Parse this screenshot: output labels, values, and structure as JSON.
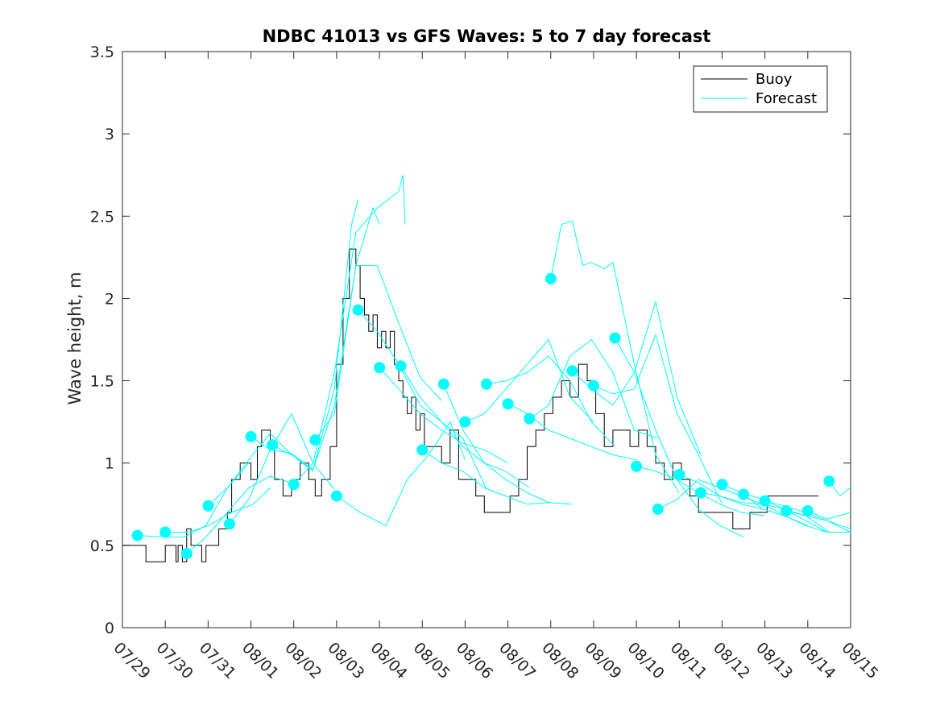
{
  "chart_data": {
    "type": "line",
    "title": "NDBC 41013 vs GFS Waves: 5 to 7 day forecast",
    "xlabel": "",
    "ylabel": "Wave height, m",
    "xlim": [
      -0.95,
      16.05
    ],
    "ylim": [
      0,
      3.5
    ],
    "x_tick_values": [
      -0.95,
      0.05,
      1.05,
      2.05,
      3.05,
      4.05,
      5.05,
      6.05,
      7.05,
      8.05,
      9.05,
      10.05,
      11.05,
      12.05,
      13.05,
      14.05,
      15.05,
      16.05
    ],
    "x_tick_labels": [
      "07/29",
      "07/30",
      "07/31",
      "08/01",
      "08/02",
      "08/03",
      "08/04",
      "08/05",
      "08/06",
      "08/07",
      "08/08",
      "08/09",
      "08/10",
      "08/11",
      "08/12",
      "08/13",
      "08/14",
      "08/15"
    ],
    "y_ticks": [
      0,
      0.5,
      1,
      1.5,
      2,
      2.5,
      3,
      3.5
    ],
    "legend": {
      "location": "top-right",
      "entries": [
        {
          "label": "Buoy",
          "color": "#000000"
        },
        {
          "label": "Forecast",
          "color": "#00FFFF"
        }
      ]
    },
    "colors": {
      "buoy": "#000000",
      "forecast": "#00FFFF",
      "marker": "#00FFFF"
    },
    "buoy": {
      "name": "Buoy",
      "x": [
        -0.95,
        -0.6,
        -0.4,
        -0.35,
        0.0,
        0.05,
        0.3,
        0.35,
        0.45,
        0.55,
        0.65,
        0.7,
        0.9,
        1.0,
        1.2,
        1.3,
        1.5,
        1.6,
        1.8,
        1.9,
        2.05,
        2.2,
        2.3,
        2.5,
        2.6,
        2.8,
        3.0,
        3.2,
        3.4,
        3.55,
        3.7,
        3.9,
        4.05,
        4.2,
        4.35,
        4.5,
        4.6,
        4.7,
        4.8,
        4.9,
        5.0,
        5.1,
        5.2,
        5.3,
        5.4,
        5.5,
        5.6,
        5.7,
        5.8,
        5.9,
        6.0,
        6.1,
        6.3,
        6.5,
        6.7,
        6.9,
        7.1,
        7.3,
        7.5,
        7.7,
        7.9,
        8.1,
        8.3,
        8.5,
        8.7,
        8.9,
        9.1,
        9.3,
        9.5,
        9.7,
        9.9,
        10.1,
        10.3,
        10.5,
        10.7,
        10.9,
        11.1,
        11.3,
        11.5,
        11.7,
        11.9,
        12.1,
        12.3,
        12.5,
        12.7,
        12.9,
        13.1,
        13.3,
        13.5,
        13.7,
        13.9,
        14.1,
        14.3,
        14.5,
        14.7,
        14.9,
        15.1,
        15.3
      ],
      "y": [
        0.5,
        0.5,
        0.4,
        0.4,
        0.4,
        0.5,
        0.4,
        0.5,
        0.4,
        0.6,
        0.5,
        0.5,
        0.4,
        0.5,
        0.5,
        0.6,
        0.7,
        0.9,
        1.0,
        1.0,
        0.9,
        1.1,
        1.2,
        1.1,
        0.9,
        0.8,
        0.9,
        1.0,
        0.9,
        0.8,
        0.9,
        1.1,
        1.6,
        2.0,
        2.3,
        2.2,
        2.0,
        1.9,
        1.8,
        1.9,
        1.7,
        1.8,
        1.7,
        1.8,
        1.6,
        1.5,
        1.4,
        1.3,
        1.4,
        1.2,
        1.3,
        1.1,
        1.1,
        1.0,
        1.2,
        0.9,
        0.9,
        0.8,
        0.7,
        0.7,
        0.7,
        0.8,
        0.9,
        1.1,
        1.2,
        1.3,
        1.4,
        1.5,
        1.4,
        1.6,
        1.5,
        1.3,
        1.1,
        1.2,
        1.2,
        1.1,
        1.2,
        1.1,
        1.0,
        0.9,
        1.0,
        0.9,
        0.8,
        0.7,
        0.7,
        0.7,
        0.7,
        0.6,
        0.6,
        0.7,
        0.7,
        0.8,
        0.8,
        0.8,
        0.8,
        0.8,
        0.8,
        0.8
      ]
    },
    "forecast_series": [
      {
        "x": [
          -0.6,
          0.1,
          0.5,
          1.0,
          1.5,
          2.0
        ],
        "y": [
          0.56,
          0.55,
          0.55,
          0.62,
          0.85,
          1.0
        ]
      },
      {
        "x": [
          0.05,
          0.6,
          1.05,
          1.6,
          2.1,
          2.5
        ],
        "y": [
          0.58,
          0.58,
          0.62,
          0.7,
          0.75,
          0.85
        ]
      },
      {
        "x": [
          0.55,
          1.0,
          1.5,
          2.0,
          2.5,
          3.0
        ],
        "y": [
          0.45,
          0.55,
          0.7,
          0.85,
          0.92,
          0.88
        ]
      },
      {
        "x": [
          1.05,
          1.5,
          2.0,
          2.5,
          3.0,
          3.5
        ],
        "y": [
          0.74,
          0.85,
          1.02,
          1.18,
          1.05,
          0.95
        ]
      },
      {
        "x": [
          1.55,
          2.0,
          2.5,
          3.0,
          3.5,
          4.0
        ],
        "y": [
          0.63,
          0.78,
          1.08,
          1.3,
          1.0,
          0.84
        ]
      },
      {
        "x": [
          2.05,
          2.5,
          3.0,
          3.5,
          4.0,
          4.4,
          4.55
        ],
        "y": [
          1.16,
          1.08,
          1.06,
          0.96,
          1.45,
          2.45,
          2.6
        ]
      },
      {
        "x": [
          2.55,
          3.0,
          3.5,
          4.0,
          4.5,
          4.9,
          5.05
        ],
        "y": [
          1.11,
          1.05,
          0.96,
          1.35,
          2.2,
          2.55,
          2.45
        ]
      },
      {
        "x": [
          3.05,
          3.5,
          4.0,
          4.5,
          5.0,
          5.5,
          5.6,
          5.65
        ],
        "y": [
          0.87,
          1.0,
          1.55,
          2.4,
          2.55,
          2.65,
          2.75,
          2.45
        ]
      },
      {
        "x": [
          3.55,
          4.0,
          4.5,
          5.0,
          5.5,
          6.0,
          6.5
        ],
        "y": [
          1.14,
          1.3,
          2.2,
          2.2,
          1.85,
          1.52,
          1.38
        ]
      },
      {
        "x": [
          4.05,
          4.6,
          5.2,
          5.7,
          6.2,
          6.7,
          7.05
        ],
        "y": [
          0.8,
          0.7,
          0.62,
          0.9,
          1.05,
          1.25,
          1.02
        ]
      },
      {
        "x": [
          4.55,
          5.0,
          5.5,
          6.0,
          6.5,
          7.0,
          7.55
        ],
        "y": [
          1.93,
          1.8,
          1.6,
          1.35,
          1.25,
          1.15,
          0.84
        ]
      },
      {
        "x": [
          5.05,
          5.5,
          6.0,
          6.5,
          7.0,
          7.5,
          8.05
        ],
        "y": [
          1.58,
          1.45,
          1.3,
          1.2,
          1.12,
          1.08,
          1.0
        ]
      },
      {
        "x": [
          5.55,
          6.0,
          6.5,
          7.0,
          7.5,
          8.0,
          8.55
        ],
        "y": [
          1.59,
          1.4,
          1.25,
          1.1,
          1.0,
          0.95,
          0.85
        ]
      },
      {
        "x": [
          6.05,
          6.5,
          7.0,
          7.5,
          8.0,
          8.5,
          9.05
        ],
        "y": [
          1.08,
          1.0,
          0.95,
          0.85,
          0.8,
          0.75,
          0.76
        ]
      },
      {
        "x": [
          6.55,
          7.0,
          7.5,
          8.0,
          8.5,
          9.0,
          9.55
        ],
        "y": [
          1.48,
          1.2,
          1.0,
          0.9,
          0.82,
          0.76,
          0.75
        ]
      },
      {
        "x": [
          7.05,
          7.5,
          8.0,
          8.5,
          9.0,
          9.5,
          10.05
        ],
        "y": [
          1.25,
          1.3,
          1.45,
          1.6,
          1.75,
          1.4,
          1.25
        ]
      },
      {
        "x": [
          7.55,
          8.0,
          8.5,
          9.0,
          9.5,
          10.0,
          10.55
        ],
        "y": [
          1.48,
          1.5,
          1.55,
          1.65,
          1.5,
          1.25,
          1.1
        ]
      },
      {
        "x": [
          8.05,
          8.5,
          9.0,
          9.5,
          10.0,
          10.5,
          11.05
        ],
        "y": [
          1.36,
          1.3,
          1.2,
          1.15,
          1.1,
          1.05,
          1.02
        ]
      },
      {
        "x": [
          8.55,
          9.0,
          9.5,
          10.0,
          10.5,
          11.0,
          11.55
        ],
        "y": [
          1.27,
          1.35,
          1.65,
          1.75,
          1.55,
          1.2,
          1.15
        ]
      },
      {
        "x": [
          9.05,
          9.3,
          9.55,
          9.8,
          10.0,
          10.3,
          10.5,
          11.0,
          11.5,
          12.05
        ],
        "y": [
          2.12,
          2.45,
          2.47,
          2.2,
          2.22,
          2.18,
          2.22,
          1.6,
          1.05,
          0.82
        ]
      },
      {
        "x": [
          9.55,
          10.0,
          10.5,
          11.0,
          11.5,
          12.0,
          12.55
        ],
        "y": [
          1.56,
          1.45,
          1.35,
          1.55,
          1.98,
          1.4,
          1.05
        ]
      },
      {
        "x": [
          10.05,
          10.5,
          11.0,
          11.5,
          12.0,
          12.5,
          13.05
        ],
        "y": [
          1.47,
          1.42,
          1.45,
          1.78,
          1.3,
          1.05,
          0.75
        ]
      },
      {
        "x": [
          10.55,
          11.0,
          11.5,
          12.0,
          12.5,
          13.0,
          13.55
        ],
        "y": [
          1.76,
          1.55,
          1.2,
          0.9,
          0.72,
          0.62,
          0.55
        ]
      },
      {
        "x": [
          11.05,
          11.5,
          12.0,
          12.5,
          13.0,
          13.5,
          14.05
        ],
        "y": [
          0.98,
          0.95,
          0.9,
          0.82,
          0.75,
          0.7,
          0.68
        ]
      },
      {
        "x": [
          11.55,
          12.0,
          12.5,
          13.0,
          13.5,
          14.0,
          14.55
        ],
        "y": [
          0.72,
          0.78,
          0.9,
          0.85,
          0.8,
          0.75,
          0.68
        ]
      },
      {
        "x": [
          12.05,
          12.5,
          13.0,
          13.5,
          14.0,
          14.5,
          15.05
        ],
        "y": [
          0.93,
          0.88,
          0.8,
          0.75,
          0.72,
          0.68,
          0.62
        ]
      },
      {
        "x": [
          12.55,
          13.0,
          13.5,
          14.0,
          14.5,
          15.0,
          15.55
        ],
        "y": [
          0.82,
          0.8,
          0.76,
          0.75,
          0.72,
          0.68,
          0.58
        ]
      },
      {
        "x": [
          13.05,
          13.5,
          14.0,
          14.5,
          15.0,
          15.5,
          16.05
        ],
        "y": [
          0.87,
          0.82,
          0.78,
          0.72,
          0.65,
          0.58,
          0.58
        ]
      },
      {
        "x": [
          13.55,
          14.0,
          14.5,
          15.0,
          15.5,
          16.05
        ],
        "y": [
          0.81,
          0.72,
          0.68,
          0.62,
          0.58,
          0.58
        ]
      },
      {
        "x": [
          14.05,
          14.5,
          15.0,
          15.5,
          16.05
        ],
        "y": [
          0.77,
          0.74,
          0.7,
          0.65,
          0.6
        ]
      },
      {
        "x": [
          14.55,
          15.0,
          15.5,
          16.05
        ],
        "y": [
          0.71,
          0.68,
          0.65,
          0.58
        ]
      },
      {
        "x": [
          15.05,
          15.5,
          16.05
        ],
        "y": [
          0.71,
          0.66,
          0.7
        ]
      },
      {
        "x": [
          15.55,
          15.8,
          16.05
        ],
        "y": [
          0.89,
          0.8,
          0.85
        ]
      }
    ],
    "forecast_markers": {
      "x": [
        -0.6,
        0.05,
        0.55,
        1.05,
        1.55,
        2.05,
        2.55,
        3.05,
        3.55,
        4.05,
        4.55,
        5.05,
        5.55,
        6.05,
        6.55,
        7.05,
        7.55,
        8.05,
        8.55,
        9.05,
        9.55,
        10.05,
        10.55,
        11.05,
        11.55,
        12.05,
        12.55,
        13.05,
        13.55,
        14.05,
        14.55,
        15.05,
        15.55
      ],
      "y": [
        0.56,
        0.58,
        0.45,
        0.74,
        0.63,
        1.16,
        1.11,
        0.87,
        1.14,
        0.8,
        1.93,
        1.58,
        1.59,
        1.08,
        1.48,
        1.25,
        1.48,
        1.36,
        1.27,
        2.12,
        1.56,
        1.47,
        1.76,
        0.98,
        0.72,
        0.93,
        0.82,
        0.87,
        0.81,
        0.77,
        0.71,
        0.71,
        0.89
      ]
    }
  }
}
